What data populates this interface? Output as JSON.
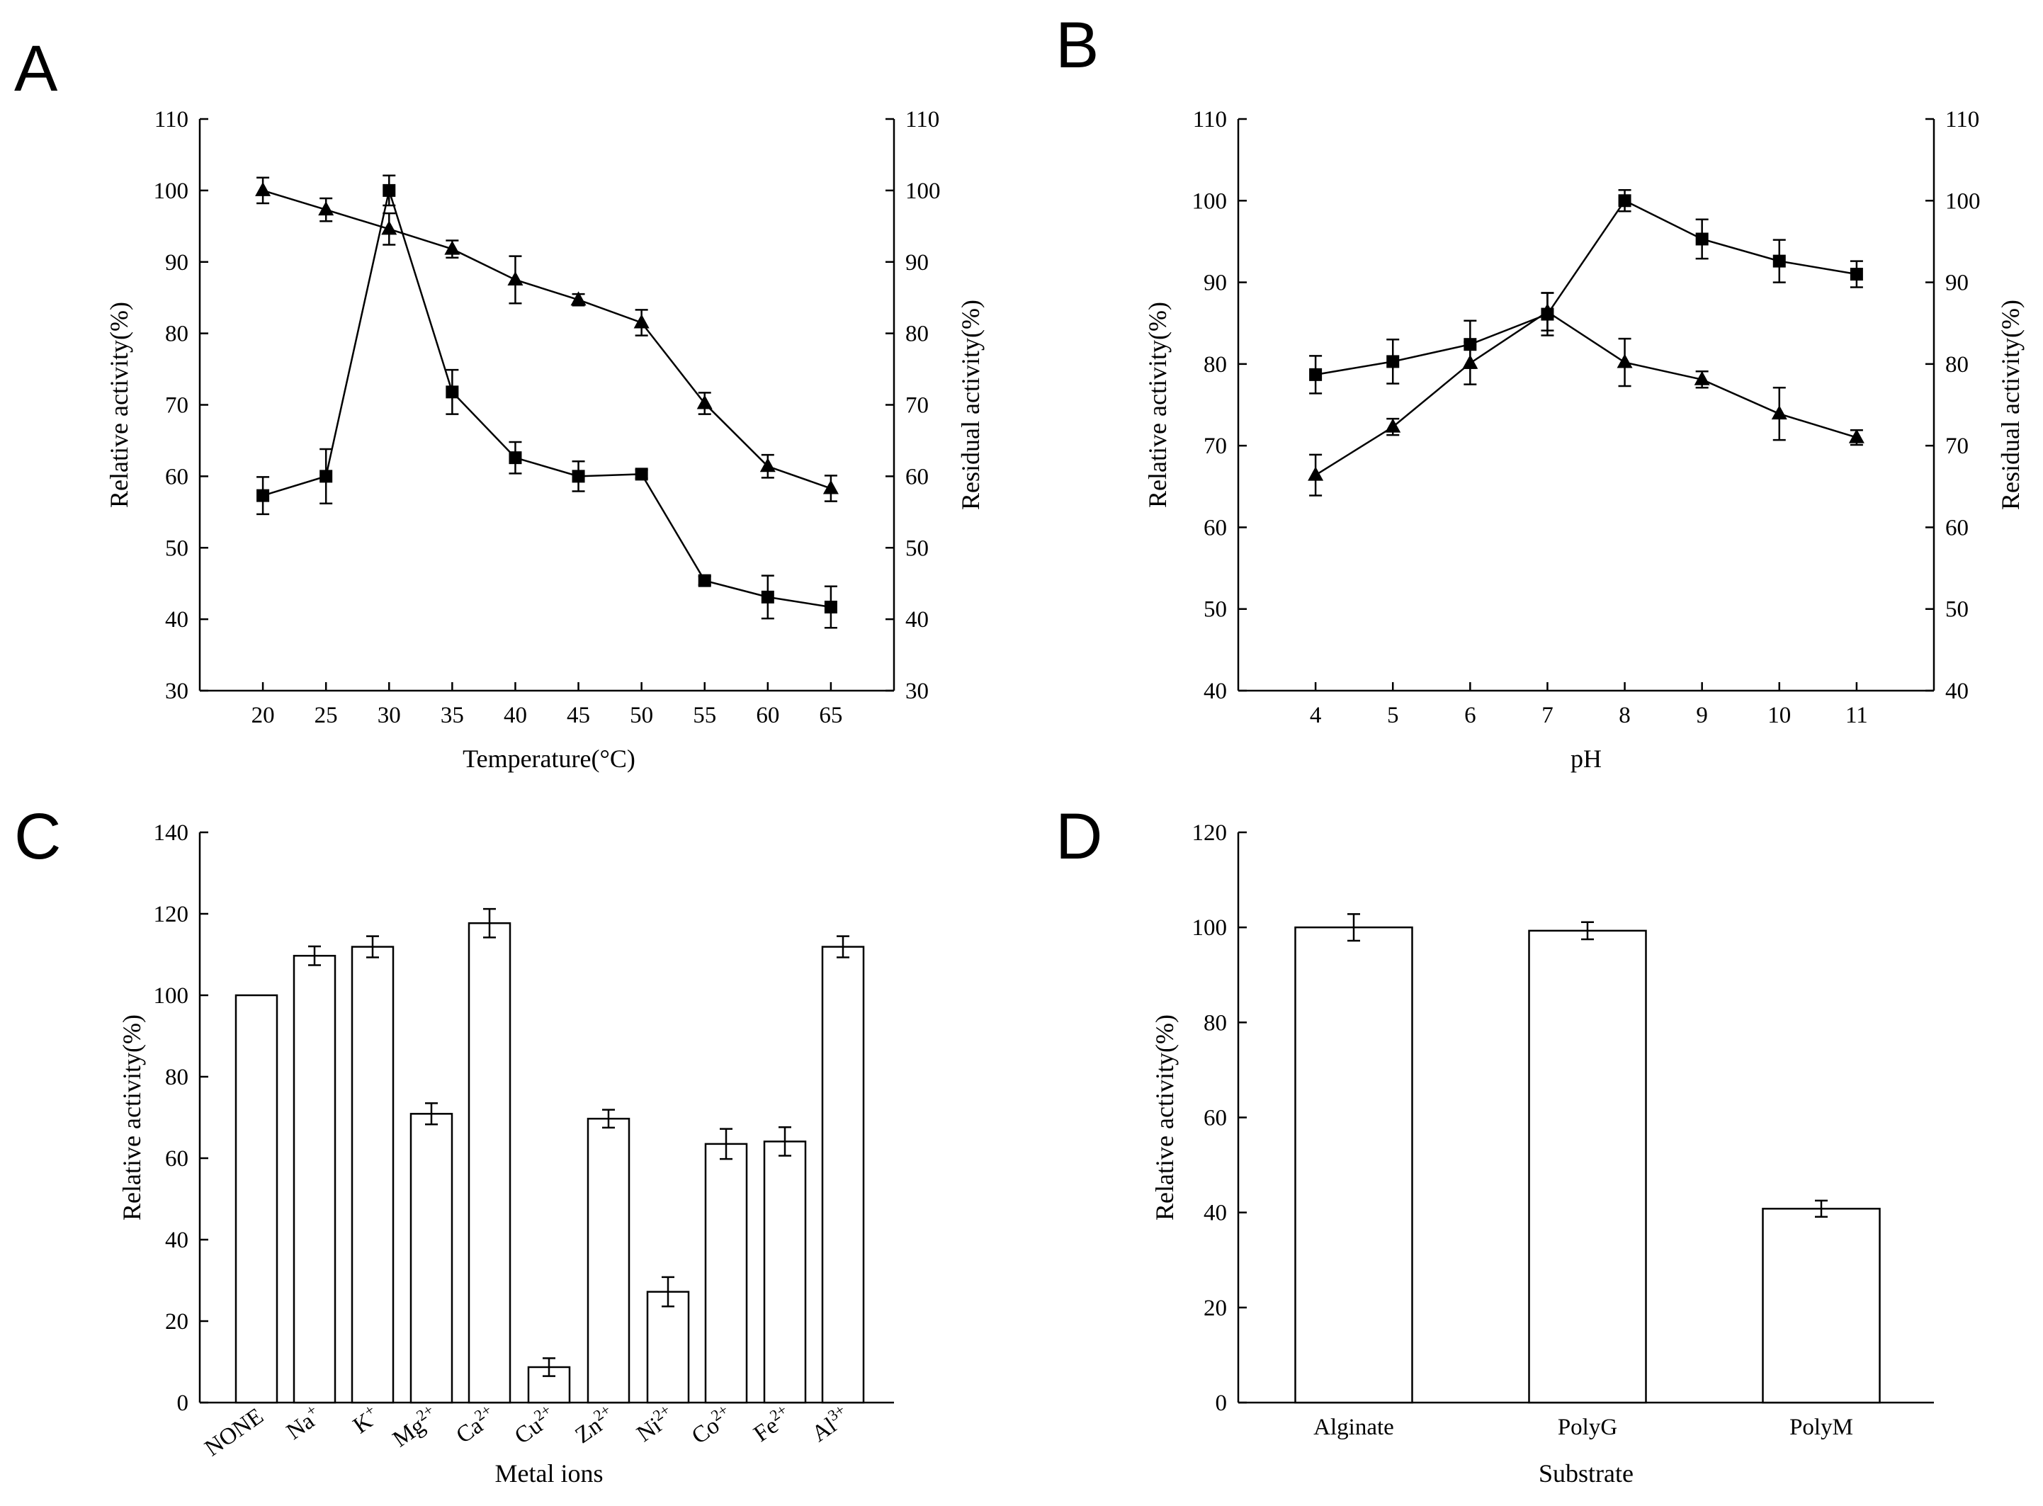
{
  "chart_data": [
    {
      "panel": "A",
      "type": "line",
      "xlabel": "Temperature(°C)",
      "ylabel": "Relative activity(%)",
      "y2label": "Residual activity(%)",
      "x": [
        20,
        25,
        30,
        35,
        40,
        45,
        50,
        55,
        60,
        65
      ],
      "xlim": [
        15,
        70
      ],
      "ylim": [
        30,
        110
      ],
      "y2lim": [
        30,
        110
      ],
      "yticks": [
        30,
        40,
        50,
        60,
        70,
        80,
        90,
        100,
        110
      ],
      "series": [
        {
          "marker": "square",
          "axis": "left",
          "values": [
            57.3,
            60.0,
            100.0,
            71.8,
            62.6,
            60.0,
            60.3,
            45.4,
            43.1,
            41.7
          ],
          "errors": [
            2.6,
            3.8,
            2.1,
            3.1,
            2.2,
            2.1,
            0.6,
            0.6,
            3.0,
            2.9
          ]
        },
        {
          "marker": "triangle",
          "axis": "right",
          "values": [
            100.0,
            97.3,
            94.6,
            91.8,
            87.5,
            84.7,
            81.5,
            70.2,
            61.4,
            58.3
          ],
          "errors": [
            1.8,
            1.6,
            2.2,
            1.2,
            3.3,
            0.8,
            1.8,
            1.5,
            1.6,
            1.8
          ]
        }
      ]
    },
    {
      "panel": "B",
      "type": "line",
      "xlabel": "pH",
      "ylabel": "Relative activity(%)",
      "y2label": "Residual activity(%)",
      "x": [
        4,
        5,
        6,
        7,
        8,
        9,
        10,
        11
      ],
      "xlim": [
        3,
        12
      ],
      "ylim": [
        40,
        110
      ],
      "y2lim": [
        40,
        110
      ],
      "yticks": [
        40,
        50,
        60,
        70,
        80,
        90,
        100,
        110
      ],
      "series": [
        {
          "marker": "square",
          "axis": "left",
          "values": [
            78.7,
            80.3,
            82.4,
            86.1,
            100.0,
            95.3,
            92.6,
            91.0
          ],
          "errors": [
            2.3,
            2.7,
            2.9,
            2.6,
            1.3,
            2.4,
            2.6,
            1.6
          ]
        },
        {
          "marker": "triangle",
          "axis": "right",
          "values": [
            66.4,
            72.3,
            80.1,
            86.4,
            80.2,
            78.1,
            73.9,
            71.0
          ],
          "errors": [
            2.5,
            1.0,
            2.6,
            2.3,
            2.9,
            1.0,
            3.2,
            0.9
          ]
        }
      ]
    },
    {
      "panel": "C",
      "type": "bar",
      "xlabel": "Metal ions",
      "ylabel": "Relative activity(%)",
      "ylim": [
        0,
        140
      ],
      "yticks": [
        0,
        20,
        40,
        60,
        80,
        100,
        120,
        140
      ],
      "categories": [
        {
          "base": "NONE",
          "sup": ""
        },
        {
          "base": "Na",
          "sup": "+"
        },
        {
          "base": "K",
          "sup": "+"
        },
        {
          "base": "Mg",
          "sup": "2+"
        },
        {
          "base": "Ca",
          "sup": "2+"
        },
        {
          "base": "Cu",
          "sup": "2+"
        },
        {
          "base": "Zn",
          "sup": "2+"
        },
        {
          "base": "Ni",
          "sup": "2+"
        },
        {
          "base": "Co",
          "sup": "2+"
        },
        {
          "base": "Fe",
          "sup": "2+"
        },
        {
          "base": "Al",
          "sup": "3+"
        }
      ],
      "values": [
        100,
        109.7,
        111.9,
        70.9,
        117.7,
        8.7,
        69.7,
        27.2,
        63.5,
        64.1,
        111.9
      ],
      "errors": [
        0,
        2.3,
        2.6,
        2.6,
        3.5,
        2.2,
        2.2,
        3.6,
        3.7,
        3.5,
        2.6
      ]
    },
    {
      "panel": "D",
      "type": "bar",
      "xlabel": "Substrate",
      "ylabel": "Relative activity(%)",
      "ylim": [
        0,
        120
      ],
      "yticks": [
        0,
        20,
        40,
        60,
        80,
        100,
        120
      ],
      "categories": [
        {
          "base": "Alginate",
          "sup": ""
        },
        {
          "base": "PolyG",
          "sup": ""
        },
        {
          "base": "PolyM",
          "sup": ""
        }
      ],
      "values": [
        100,
        99.3,
        40.8
      ],
      "errors": [
        2.8,
        1.8,
        1.7
      ]
    }
  ]
}
